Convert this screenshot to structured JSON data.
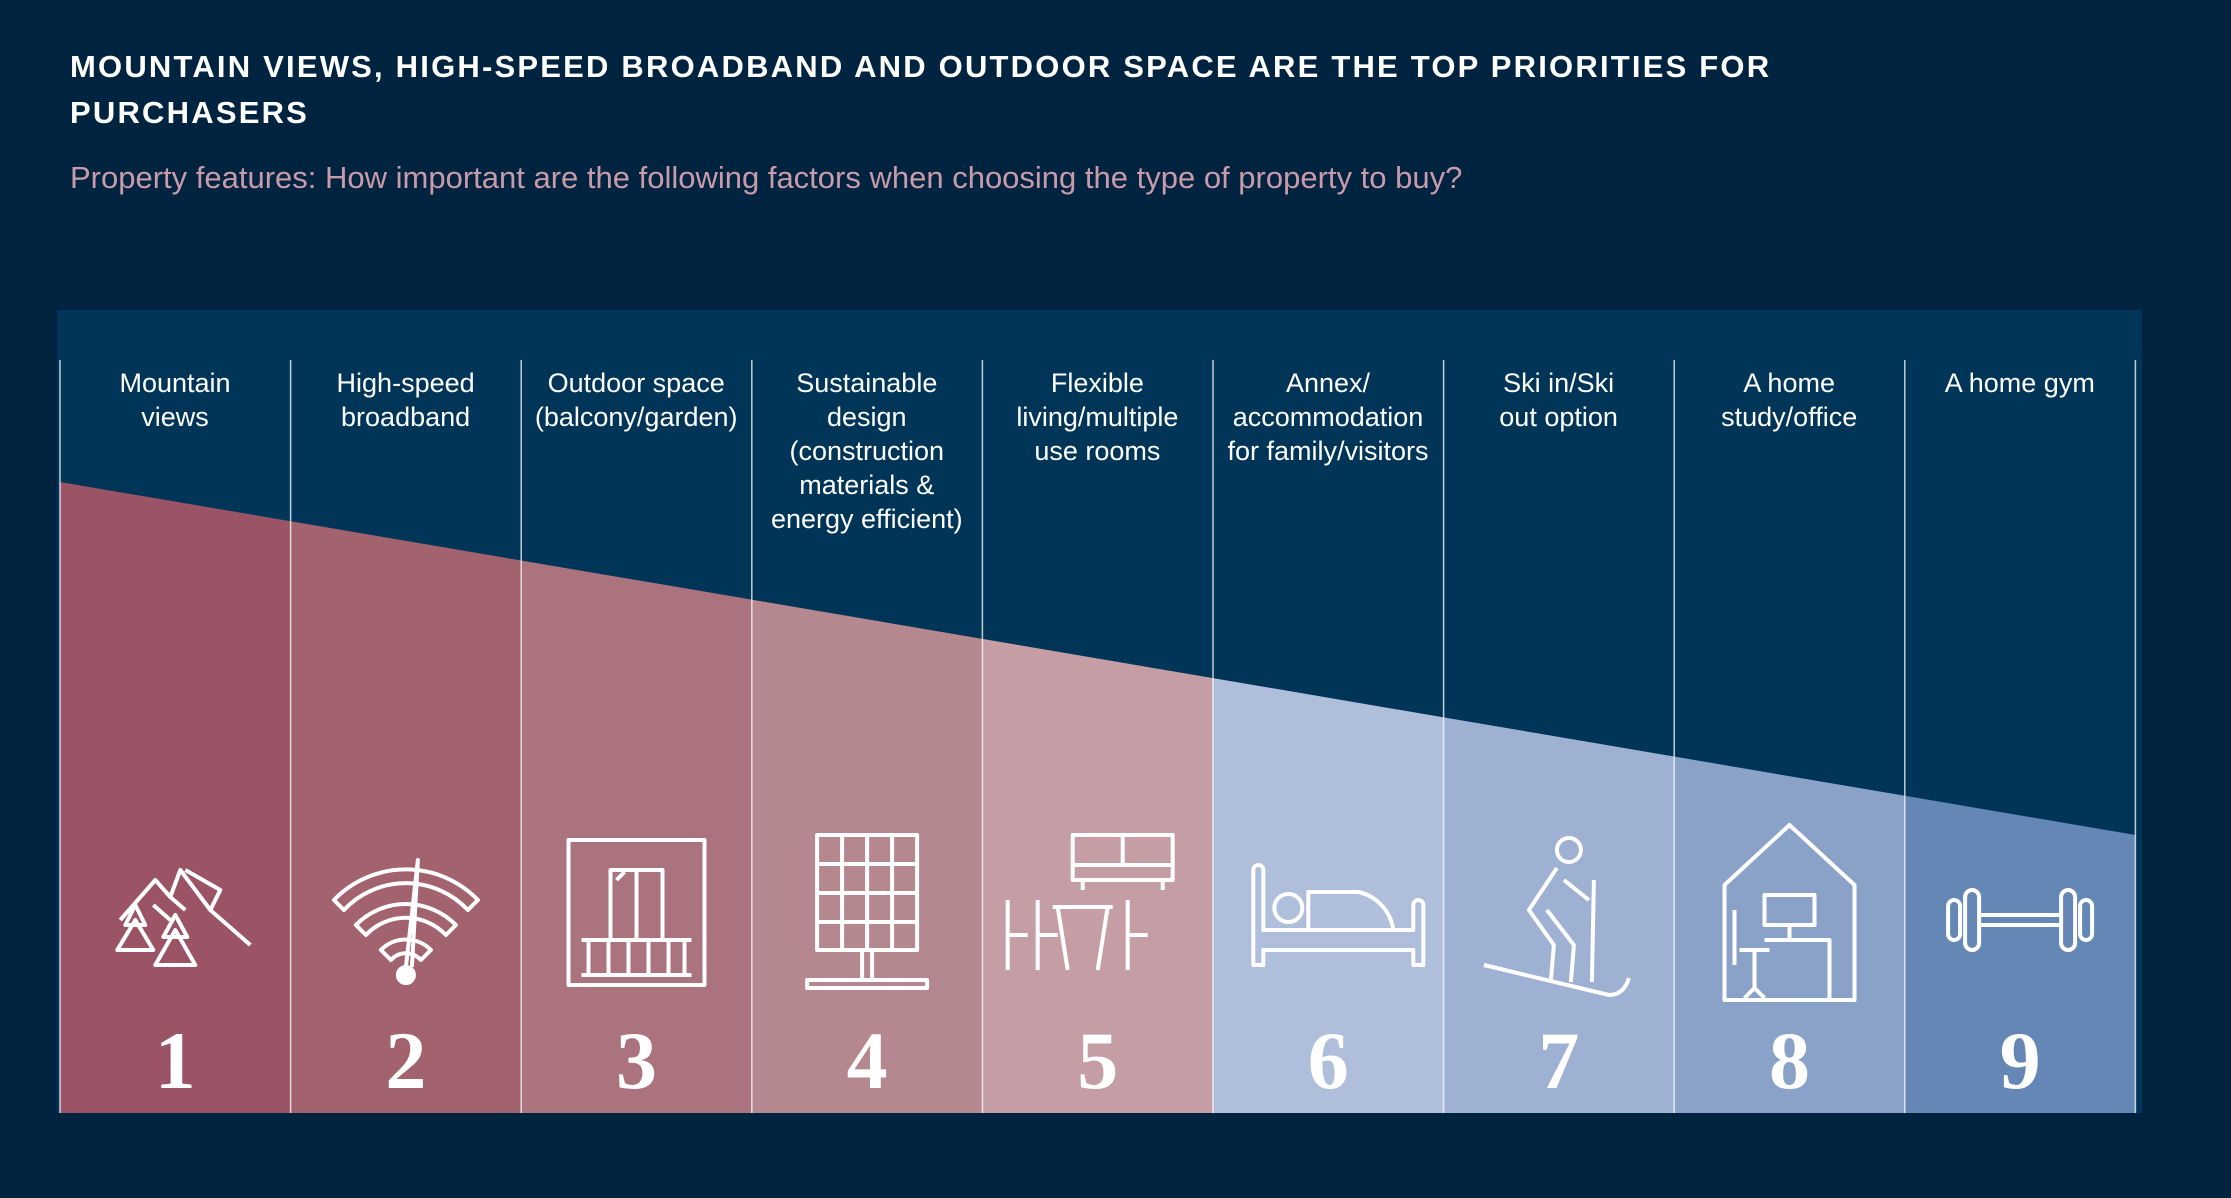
{
  "title": "Mountain views, high-speed broadband and outdoor space are the top priorities for purchasers",
  "subtitle": "Property features: How important are the following factors when choosing the type of property to buy?",
  "chart_data": {
    "type": "bar",
    "title": "Mountain views, high-speed broadband and outdoor space are the top priorities for purchasers",
    "subtitle": "Property features: How important are the following factors when choosing the type of property to buy?",
    "categories": [
      "Mountain views",
      "High-speed broadband",
      "Outdoor space (balcony/garden)",
      "Sustainable design (construction materials & energy efficient)",
      "Flexible living/multiple use rooms",
      "Annex/ accommodation for family/visitors",
      "Ski in/Ski out option",
      "A home study/office",
      "A home gym"
    ],
    "label_lines": [
      [
        "Mountain",
        "views"
      ],
      [
        "High-speed",
        "broadband"
      ],
      [
        "Outdoor space",
        "(balcony/garden)"
      ],
      [
        "Sustainable",
        "design",
        "(construction",
        "materials &",
        "energy efficient)"
      ],
      [
        "Flexible",
        "living/multiple",
        "use rooms"
      ],
      [
        "Annex/",
        "accommodation",
        "for family/visitors"
      ],
      [
        "Ski in/Ski",
        "out option"
      ],
      [
        "A home",
        "study/office"
      ],
      [
        "A home gym"
      ]
    ],
    "ranks": [
      "1",
      "2",
      "3",
      "4",
      "5",
      "6",
      "7",
      "8",
      "9"
    ],
    "icons": [
      "mountains-icon",
      "wifi-icon",
      "balcony-icon",
      "solar-panel-icon",
      "furniture-icon",
      "bed-icon",
      "skier-icon",
      "home-office-icon",
      "dumbbell-icon"
    ],
    "colors": [
      "#9a5465",
      "#a2636f",
      "#ab737e",
      "#b5878f",
      "#c59ea5",
      "#afbedb",
      "#9fb1d2",
      "#8aa2c8",
      "#6587b6"
    ],
    "xlabel": "",
    "ylabel": ""
  }
}
